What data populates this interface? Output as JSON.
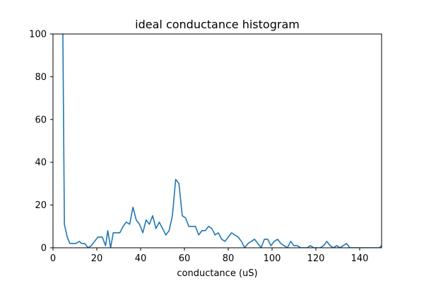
{
  "chart_data": {
    "type": "line",
    "title": "ideal conductance histogram",
    "xlabel": "conductance (uS)",
    "ylabel": "",
    "xlim": [
      0,
      150
    ],
    "ylim": [
      0,
      100
    ],
    "x_ticks": [
      0,
      20,
      40,
      60,
      80,
      100,
      120,
      140
    ],
    "y_ticks": [
      0,
      20,
      40,
      60,
      80,
      100
    ],
    "grid": false,
    "series": [
      {
        "color": "#1f77b4",
        "x": [
          4.0,
          4.5,
          5.2,
          6.5,
          7.7,
          9,
          10.5,
          12,
          13,
          14.5,
          16,
          17.5,
          19,
          20.5,
          22.5,
          24,
          25,
          26.3,
          27.5,
          29,
          30.5,
          32,
          33.5,
          35,
          36.5,
          38,
          39.5,
          41,
          42.5,
          44,
          45.5,
          47,
          48.5,
          50,
          51.5,
          53,
          54.5,
          56,
          57.5,
          59,
          60.5,
          62,
          63.5,
          65,
          66.5,
          68,
          69.5,
          71,
          72.5,
          74,
          75.5,
          77,
          78.5,
          80,
          81.5,
          83,
          84.5,
          86,
          87.5,
          89,
          90.5,
          92,
          93.5,
          95,
          96.5,
          98,
          99.5,
          101,
          102.5,
          104,
          105.5,
          107,
          108.5,
          110,
          111.5,
          113,
          114.5,
          116,
          117.5,
          119,
          120.5,
          122,
          123.5,
          125,
          126.5,
          128,
          129.5,
          131,
          132.5,
          134,
          135.5,
          137,
          138.5,
          140,
          141.5,
          143,
          144.5,
          146,
          147.5,
          149,
          150
        ],
        "y": [
          100,
          100,
          11,
          5,
          2,
          2,
          2,
          3,
          2,
          2,
          0,
          1,
          3,
          5,
          5,
          1,
          8,
          0,
          7,
          7,
          7,
          10,
          12,
          11,
          19,
          13,
          11,
          7,
          13,
          11,
          15,
          9,
          12,
          9,
          6,
          8,
          15,
          32,
          30,
          15,
          14,
          10,
          10,
          10,
          6,
          8,
          8,
          10,
          9,
          6,
          7,
          4,
          3,
          5,
          7,
          6,
          5,
          3,
          0,
          2,
          3,
          4,
          2,
          0,
          4,
          4,
          1,
          3,
          4,
          2,
          1,
          0,
          3,
          1,
          1,
          0,
          0,
          0,
          1,
          0,
          0,
          0,
          1,
          3,
          1,
          0,
          1,
          0,
          1,
          2,
          0,
          0,
          0,
          0,
          0,
          0,
          0,
          0,
          0,
          0,
          1
        ]
      }
    ]
  }
}
